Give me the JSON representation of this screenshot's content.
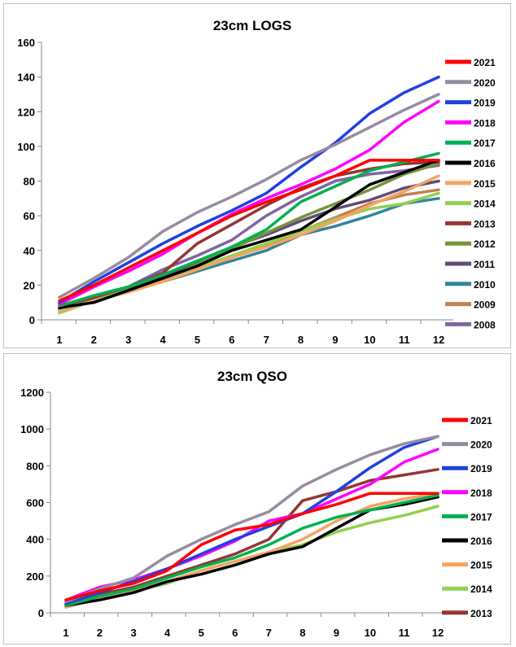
{
  "chart_data": [
    {
      "type": "line",
      "title": "23cm LOGS",
      "xlabel": "",
      "ylabel": "",
      "categories": [
        "1",
        "2",
        "3",
        "4",
        "5",
        "6",
        "7",
        "8",
        "9",
        "10",
        "11",
        "12"
      ],
      "ylim": [
        0,
        160
      ],
      "yticks": [
        0,
        20,
        40,
        60,
        80,
        100,
        120,
        140,
        160
      ],
      "grid": false,
      "legend_position": "right",
      "series": [
        {
          "name": "2021",
          "color": "#ff0000",
          "values": [
            11,
            20,
            30,
            40,
            50,
            60,
            68,
            75,
            83,
            92,
            92,
            92
          ]
        },
        {
          "name": "2020",
          "color": "#968ca0",
          "values": [
            13,
            24,
            36,
            51,
            62,
            71,
            81,
            92,
            101,
            111,
            121,
            130
          ]
        },
        {
          "name": "2019",
          "color": "#2040e0",
          "values": [
            10,
            22,
            33,
            44,
            54,
            63,
            73,
            88,
            102,
            119,
            131,
            140
          ]
        },
        {
          "name": "2018",
          "color": "#ff00ff",
          "values": [
            9,
            19,
            28,
            38,
            50,
            61,
            70,
            78,
            87,
            98,
            114,
            126
          ]
        },
        {
          "name": "2017",
          "color": "#00b050",
          "values": [
            8,
            14,
            19,
            26,
            34,
            42,
            52,
            68,
            77,
            86,
            91,
            96
          ]
        },
        {
          "name": "2016",
          "color": "#000000",
          "values": [
            7,
            10,
            17,
            24,
            31,
            40,
            46,
            52,
            65,
            78,
            85,
            92
          ]
        },
        {
          "name": "2015",
          "color": "#f4a460",
          "values": [
            5,
            11,
            16,
            22,
            29,
            36,
            42,
            49,
            57,
            66,
            74,
            83
          ]
        },
        {
          "name": "2014",
          "color": "#92d050",
          "values": [
            4,
            11,
            17,
            22,
            30,
            37,
            44,
            51,
            58,
            64,
            67,
            73
          ]
        },
        {
          "name": "2013",
          "color": "#943634",
          "values": [
            8,
            13,
            19,
            27,
            44,
            55,
            66,
            76,
            83,
            87,
            90,
            91
          ]
        },
        {
          "name": "2012",
          "color": "#77933c",
          "values": [
            7,
            13,
            18,
            23,
            32,
            41,
            50,
            59,
            67,
            75,
            84,
            90
          ]
        },
        {
          "name": "2011",
          "color": "#604a7b",
          "values": [
            7,
            13,
            18,
            25,
            33,
            42,
            49,
            57,
            64,
            69,
            76,
            80
          ]
        },
        {
          "name": "2010",
          "color": "#31849b",
          "values": [
            6,
            12,
            17,
            22,
            28,
            34,
            40,
            49,
            54,
            60,
            67,
            70
          ]
        },
        {
          "name": "2009",
          "color": "#c0804d",
          "values": [
            6,
            12,
            17,
            22,
            29,
            36,
            43,
            51,
            59,
            67,
            72,
            75
          ]
        },
        {
          "name": "2008",
          "color": "#8064a2",
          "values": [
            7,
            14,
            19,
            29,
            37,
            46,
            60,
            71,
            80,
            84,
            86,
            89
          ]
        }
      ]
    },
    {
      "type": "line",
      "title": "23cm QSO",
      "xlabel": "",
      "ylabel": "",
      "categories": [
        "1",
        "2",
        "3",
        "4",
        "5",
        "6",
        "7",
        "8",
        "9",
        "10",
        "11",
        "12"
      ],
      "ylim": [
        0,
        1200
      ],
      "yticks": [
        0,
        200,
        400,
        600,
        800,
        1000,
        1200
      ],
      "grid": false,
      "legend_position": "right",
      "series": [
        {
          "name": "2021",
          "color": "#ff0000",
          "values": [
            70,
            120,
            160,
            230,
            370,
            450,
            480,
            540,
            590,
            650,
            650,
            650
          ]
        },
        {
          "name": "2020",
          "color": "#968ca0",
          "values": [
            60,
            130,
            190,
            310,
            400,
            480,
            550,
            690,
            780,
            860,
            920,
            960
          ]
        },
        {
          "name": "2019",
          "color": "#2040e0",
          "values": [
            50,
            110,
            170,
            240,
            320,
            400,
            470,
            540,
            660,
            790,
            900,
            960
          ]
        },
        {
          "name": "2018",
          "color": "#ff00ff",
          "values": [
            70,
            140,
            180,
            240,
            310,
            390,
            500,
            540,
            620,
            700,
            820,
            890
          ]
        },
        {
          "name": "2017",
          "color": "#00b050",
          "values": [
            40,
            90,
            130,
            190,
            250,
            300,
            370,
            460,
            520,
            560,
            600,
            640
          ]
        },
        {
          "name": "2016",
          "color": "#000000",
          "values": [
            40,
            70,
            110,
            170,
            210,
            260,
            320,
            360,
            460,
            560,
            590,
            630
          ]
        },
        {
          "name": "2015",
          "color": "#f4a460",
          "values": [
            30,
            80,
            120,
            170,
            230,
            280,
            330,
            400,
            500,
            580,
            620,
            650
          ]
        },
        {
          "name": "2014",
          "color": "#92d050",
          "values": [
            40,
            90,
            120,
            160,
            230,
            280,
            330,
            370,
            440,
            490,
            530,
            580
          ]
        },
        {
          "name": "2013",
          "color": "#943634",
          "values": [
            40,
            100,
            140,
            200,
            260,
            320,
            400,
            610,
            660,
            720,
            750,
            780
          ]
        }
      ]
    }
  ]
}
